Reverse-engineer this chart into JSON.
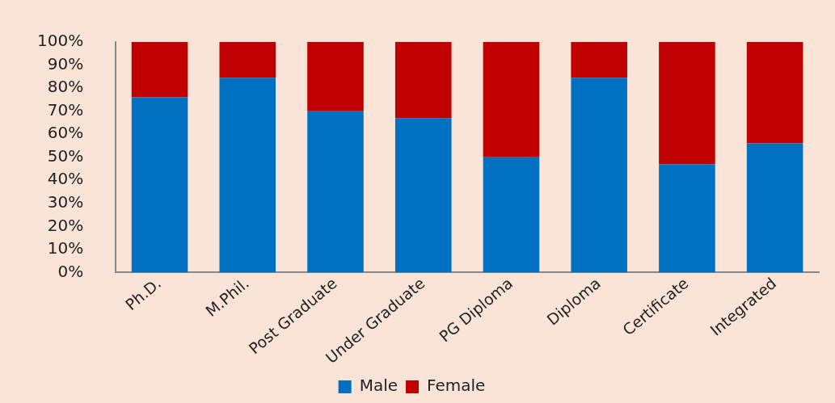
{
  "chart_data": {
    "type": "bar",
    "stacked": true,
    "categories": [
      "Ph.D.",
      "M.Phil.",
      "Post Graduate",
      "Under Graduate",
      "PG Diploma",
      "Diploma",
      "Certificate",
      "Integrated"
    ],
    "series": [
      {
        "name": "Male",
        "color": "#0070c0",
        "values": [
          76,
          84.5,
          70,
          67,
          50,
          84.5,
          47,
          56
        ]
      },
      {
        "name": "Female",
        "color": "#c00000",
        "values": [
          24,
          15.5,
          30,
          33,
          50,
          15.5,
          53,
          44
        ]
      }
    ],
    "ylim": [
      0,
      100
    ],
    "yticks": [
      {
        "value": 0,
        "label": "0%"
      },
      {
        "value": 10,
        "label": "10%"
      },
      {
        "value": 20,
        "label": "20%"
      },
      {
        "value": 30,
        "label": "30%"
      },
      {
        "value": 40,
        "label": "40%"
      },
      {
        "value": 50,
        "label": "50%"
      },
      {
        "value": 60,
        "label": "60%"
      },
      {
        "value": 70,
        "label": "70%"
      },
      {
        "value": 80,
        "label": "80%"
      },
      {
        "value": 90,
        "label": "90%"
      },
      {
        "value": 100,
        "label": "100%"
      }
    ],
    "grid": false,
    "legend": "bottom"
  }
}
